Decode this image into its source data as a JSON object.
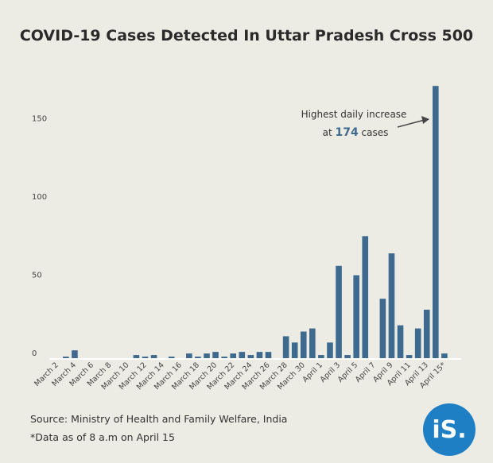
{
  "chart_data": {
    "type": "bar",
    "title": "COVID-19 Cases Detected In Uttar Pradesh Cross 500",
    "xlabel": "",
    "ylabel": "",
    "ylim": [
      0,
      175
    ],
    "yticks": [
      0,
      50,
      100,
      150
    ],
    "grid": false,
    "color": "#3f6a90",
    "categories": [
      "March 2",
      "March 3",
      "March 4",
      "March 5",
      "March 6",
      "March 7",
      "March 8",
      "March 9",
      "March 10",
      "March 11",
      "March 12",
      "March 13",
      "March 14",
      "March 15",
      "March 16",
      "March 17",
      "March 18",
      "March 19",
      "March 20",
      "March 21",
      "March 22",
      "March 23",
      "March 24",
      "March 25",
      "March 26",
      "March 27",
      "March 28",
      "March 29",
      "March 30",
      "March 31",
      "April 1",
      "April 2",
      "April 3",
      "April 4",
      "April 5",
      "April 6",
      "April 7",
      "April 8",
      "April 9",
      "April 10",
      "April 11",
      "April 12",
      "April 13",
      "April 14",
      "April 15*"
    ],
    "tick_labels": [
      "March 2",
      "March 4",
      "March 6",
      "March 8",
      "March 10",
      "March 12",
      "March 14",
      "March 16",
      "March 18",
      "March 20",
      "March 22",
      "March 24",
      "March 26",
      "March 28",
      "March 30",
      "April 1",
      "April 3",
      "April 5",
      "April 7",
      "April 9",
      "April 11",
      "April 13",
      "April 15*"
    ],
    "values": [
      0,
      1,
      5,
      0,
      0,
      0,
      0,
      0,
      0,
      2,
      1,
      2,
      0,
      1,
      0,
      3,
      1,
      3,
      4,
      1,
      3,
      4,
      2,
      4,
      4,
      0,
      14,
      10,
      17,
      19,
      2,
      10,
      59,
      2,
      53,
      78,
      0,
      38,
      67,
      21,
      2,
      19,
      31,
      174,
      3
    ],
    "annotation": {
      "line1": "Highest daily increase",
      "prefix": "at ",
      "value": "174",
      "suffix": " cases",
      "category": "April 14"
    }
  },
  "footer": {
    "source": "Source: Ministry of Health and Family Welfare, India",
    "note": "*Data as of 8 a.m on April 15"
  },
  "logo": {
    "text": "iS."
  }
}
